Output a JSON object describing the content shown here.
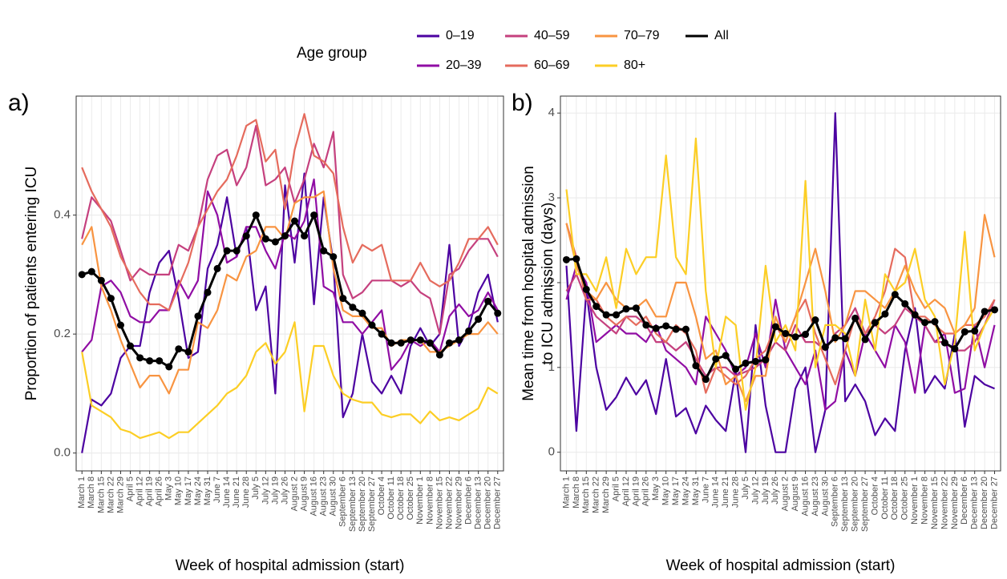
{
  "chart_data": [
    {
      "type": "line",
      "label": "a)",
      "legend_title": "Age group",
      "y_label": [
        "Proportion of patients entering ICU"
      ],
      "x_label": "Week of hospital admission (start)",
      "categories": [
        "March 1",
        "March 8",
        "March 15",
        "March 22",
        "March 29",
        "April 5",
        "April 12",
        "April 19",
        "April 26",
        "May 3",
        "May 10",
        "May 17",
        "May 24",
        "May 31",
        "June 7",
        "June 14",
        "June 21",
        "June 28",
        "July 5",
        "July 12",
        "July 19",
        "July 26",
        "August 2",
        "August 9",
        "August 16",
        "August 23",
        "August 30",
        "September 6",
        "September 13",
        "September 20",
        "September 27",
        "October 4",
        "October 11",
        "October 18",
        "October 25",
        "November 1",
        "November 8",
        "November 15",
        "November 22",
        "November 29",
        "December 6",
        "December 13",
        "December 20",
        "December 27"
      ],
      "ylim": [
        -0.03,
        0.6
      ],
      "yticks": [
        {
          "value": 0,
          "label": "0.0"
        },
        0.2,
        0.4
      ],
      "grid": true,
      "series": [
        {
          "name": "0–19",
          "color": "#4C02A1",
          "values": [
            0.0,
            0.09,
            0.08,
            0.1,
            0.16,
            0.18,
            0.18,
            0.27,
            0.32,
            0.34,
            0.26,
            0.16,
            0.17,
            0.31,
            0.35,
            0.43,
            0.33,
            0.38,
            0.24,
            0.28,
            0.1,
            0.45,
            0.32,
            0.47,
            0.25,
            0.43,
            0.32,
            0.06,
            0.1,
            0.2,
            0.12,
            0.1,
            0.13,
            0.1,
            0.18,
            0.21,
            0.18,
            0.2,
            0.35,
            0.18,
            0.21,
            0.27,
            0.3,
            0.22
          ]
        },
        {
          "name": "20–39",
          "color": "#900DA4",
          "values": [
            0.17,
            0.19,
            0.28,
            0.29,
            0.27,
            0.23,
            0.22,
            0.22,
            0.24,
            0.24,
            0.29,
            0.26,
            0.29,
            0.44,
            0.4,
            0.32,
            0.33,
            0.38,
            0.38,
            0.34,
            0.31,
            0.37,
            0.36,
            0.39,
            0.46,
            0.28,
            0.27,
            0.22,
            0.22,
            0.2,
            0.22,
            0.24,
            0.14,
            0.16,
            0.19,
            0.18,
            0.19,
            0.17,
            0.23,
            0.25,
            0.23,
            0.24,
            0.27,
            0.24
          ]
        },
        {
          "name": "40–59",
          "color": "#C5407E",
          "values": [
            0.36,
            0.43,
            0.41,
            0.39,
            0.34,
            0.29,
            0.31,
            0.3,
            0.3,
            0.3,
            0.35,
            0.34,
            0.38,
            0.46,
            0.5,
            0.51,
            0.45,
            0.48,
            0.55,
            0.45,
            0.46,
            0.48,
            0.42,
            0.46,
            0.52,
            0.48,
            0.54,
            0.3,
            0.26,
            0.27,
            0.29,
            0.29,
            0.29,
            0.28,
            0.29,
            0.27,
            0.26,
            0.2,
            0.3,
            0.31,
            0.34,
            0.36,
            0.36,
            0.33
          ]
        },
        {
          "name": "60–69",
          "color": "#E56B5D",
          "values": [
            0.48,
            0.44,
            0.41,
            0.38,
            0.33,
            0.3,
            0.27,
            0.25,
            0.25,
            0.24,
            0.28,
            0.32,
            0.38,
            0.41,
            0.44,
            0.46,
            0.5,
            0.55,
            0.56,
            0.49,
            0.51,
            0.41,
            0.51,
            0.57,
            0.5,
            0.49,
            0.47,
            0.38,
            0.32,
            0.35,
            0.34,
            0.35,
            0.29,
            0.29,
            0.29,
            0.32,
            0.29,
            0.28,
            0.29,
            0.32,
            0.36,
            0.36,
            0.38,
            0.35
          ]
        },
        {
          "name": "70–79",
          "color": "#F89441",
          "values": [
            0.35,
            0.38,
            0.28,
            0.24,
            0.19,
            0.15,
            0.11,
            0.13,
            0.13,
            0.1,
            0.14,
            0.14,
            0.22,
            0.21,
            0.24,
            0.3,
            0.29,
            0.33,
            0.34,
            0.38,
            0.38,
            0.36,
            0.42,
            0.43,
            0.43,
            0.44,
            0.31,
            0.24,
            0.23,
            0.23,
            0.21,
            0.21,
            0.18,
            0.19,
            0.19,
            0.19,
            0.17,
            0.17,
            0.18,
            0.19,
            0.2,
            0.2,
            0.22,
            0.2
          ]
        },
        {
          "name": "80+",
          "color": "#FCCE25",
          "values": [
            0.17,
            0.08,
            0.07,
            0.06,
            0.04,
            0.035,
            0.025,
            0.03,
            0.035,
            0.025,
            0.035,
            0.035,
            0.05,
            0.065,
            0.08,
            0.1,
            0.11,
            0.13,
            0.17,
            0.185,
            0.15,
            0.17,
            0.22,
            0.07,
            0.18,
            0.18,
            0.13,
            0.1,
            0.09,
            0.085,
            0.085,
            0.065,
            0.06,
            0.065,
            0.065,
            0.05,
            0.07,
            0.055,
            0.06,
            0.055,
            0.065,
            0.075,
            0.11,
            0.1
          ]
        },
        {
          "name": "All",
          "color": "#000000",
          "markers": true,
          "values": [
            0.3,
            0.305,
            0.29,
            0.26,
            0.215,
            0.18,
            0.16,
            0.155,
            0.155,
            0.145,
            0.175,
            0.17,
            0.23,
            0.27,
            0.31,
            0.34,
            0.34,
            0.365,
            0.4,
            0.36,
            0.355,
            0.365,
            0.39,
            0.365,
            0.4,
            0.34,
            0.33,
            0.26,
            0.245,
            0.235,
            0.215,
            0.2,
            0.185,
            0.185,
            0.19,
            0.19,
            0.185,
            0.165,
            0.185,
            0.19,
            0.205,
            0.225,
            0.255,
            0.235
          ]
        }
      ]
    },
    {
      "type": "line",
      "label": "b)",
      "y_label": [
        "Mean time from hospital admission",
        "to ICU admission (days)"
      ],
      "x_label": "Week of hospital admission (start)",
      "categories": [
        "March 1",
        "March 8",
        "March 15",
        "March 22",
        "March 29",
        "April 5",
        "April 12",
        "April 19",
        "April 26",
        "May 3",
        "May 10",
        "May 17",
        "May 24",
        "May 31",
        "June 7",
        "June 14",
        "June 21",
        "June 28",
        "July 5",
        "July 12",
        "July 19",
        "July 26",
        "August 2",
        "August 9",
        "August 16",
        "August 23",
        "August 30",
        "September 6",
        "September 13",
        "September 20",
        "September 27",
        "October 4",
        "October 11",
        "October 18",
        "October 25",
        "November 1",
        "November 8",
        "November 15",
        "November 22",
        "November 29",
        "December 6",
        "December 13",
        "December 20",
        "December 27"
      ],
      "ylim": [
        -0.22,
        4.2
      ],
      "yticks": [
        0,
        1,
        2,
        3,
        4
      ],
      "grid": true,
      "series": [
        {
          "name": "0–19",
          "color": "#4C02A1",
          "values": [
            2.2,
            0.25,
            1.9,
            1.0,
            0.5,
            0.65,
            0.88,
            0.68,
            0.85,
            0.45,
            1.1,
            0.42,
            0.52,
            0.22,
            0.55,
            0.38,
            0.25,
            0.95,
            0.0,
            1.5,
            0.55,
            0.0,
            0.0,
            0.75,
            1.0,
            0.0,
            0.5,
            4.0,
            0.6,
            0.8,
            0.6,
            0.2,
            0.4,
            0.25,
            1.2,
            1.7,
            0.7,
            0.9,
            0.75,
            1.4,
            0.3,
            0.9,
            0.8,
            0.75
          ]
        },
        {
          "name": "20–39",
          "color": "#900DA4",
          "values": [
            1.8,
            2.2,
            2.0,
            1.3,
            1.4,
            1.5,
            1.4,
            1.4,
            1.3,
            1.5,
            1.2,
            1.1,
            1.0,
            0.8,
            1.6,
            1.4,
            1.2,
            0.9,
            1.0,
            1.4,
            1.0,
            1.8,
            1.2,
            1.0,
            0.8,
            1.2,
            0.5,
            0.6,
            1.2,
            0.9,
            1.4,
            1.2,
            1.0,
            1.5,
            1.3,
            0.7,
            1.5,
            1.3,
            1.4,
            0.7,
            0.75,
            1.5,
            1.0,
            1.5
          ]
        },
        {
          "name": "40–59",
          "color": "#C5407E",
          "values": [
            1.9,
            2.1,
            1.8,
            1.6,
            1.5,
            1.4,
            1.6,
            1.6,
            1.5,
            1.3,
            1.3,
            1.2,
            1.3,
            1.1,
            0.9,
            1.0,
            1.0,
            0.9,
            0.95,
            1.0,
            1.1,
            1.3,
            1.2,
            1.5,
            1.3,
            1.3,
            1.2,
            1.4,
            1.5,
            1.7,
            1.4,
            1.5,
            1.4,
            1.5,
            1.7,
            1.6,
            1.5,
            1.3,
            1.3,
            1.2,
            1.2,
            1.3,
            1.5,
            1.8
          ]
        },
        {
          "name": "60–69",
          "color": "#E56B5D",
          "values": [
            2.7,
            2.3,
            1.8,
            1.8,
            1.6,
            1.5,
            1.6,
            1.5,
            1.6,
            1.4,
            1.3,
            1.5,
            1.4,
            1.2,
            0.7,
            1.0,
            0.9,
            0.8,
            0.9,
            1.1,
            1.2,
            1.5,
            1.3,
            1.6,
            1.8,
            1.4,
            1.1,
            0.8,
            1.2,
            1.6,
            1.4,
            1.6,
            1.9,
            2.4,
            2.3,
            1.6,
            1.6,
            1.5,
            1.4,
            1.4,
            1.5,
            1.5,
            1.6,
            1.8
          ]
        },
        {
          "name": "70–79",
          "color": "#F89441",
          "values": [
            2.7,
            2.2,
            1.9,
            1.8,
            2.0,
            1.8,
            1.7,
            1.7,
            1.8,
            1.6,
            1.6,
            2.0,
            2.0,
            1.6,
            1.1,
            1.2,
            0.8,
            0.9,
            0.6,
            0.9,
            0.9,
            1.6,
            1.3,
            1.6,
            2.0,
            2.4,
            1.9,
            1.3,
            1.5,
            1.9,
            1.9,
            1.8,
            1.7,
            1.9,
            2.2,
            1.9,
            1.7,
            1.8,
            1.7,
            1.4,
            1.5,
            1.7,
            2.8,
            2.3
          ]
        },
        {
          "name": "80+",
          "color": "#FCCE25",
          "values": [
            3.1,
            2.1,
            2.1,
            1.9,
            2.3,
            1.7,
            2.4,
            2.1,
            2.3,
            2.3,
            3.5,
            2.3,
            2.1,
            3.7,
            1.9,
            1.0,
            1.6,
            1.5,
            0.5,
            1.0,
            2.2,
            1.3,
            1.5,
            1.2,
            3.2,
            1.0,
            1.5,
            1.5,
            1.4,
            0.9,
            1.8,
            1.2,
            2.1,
            1.9,
            2.0,
            2.4,
            1.8,
            1.6,
            0.8,
            1.3,
            2.6,
            1.2,
            1.5,
            1.7
          ]
        },
        {
          "name": "All",
          "color": "#000000",
          "markers": true,
          "values": [
            2.27,
            2.28,
            1.92,
            1.72,
            1.62,
            1.62,
            1.69,
            1.7,
            1.5,
            1.46,
            1.49,
            1.45,
            1.45,
            1.02,
            0.86,
            1.1,
            1.14,
            0.98,
            1.05,
            1.07,
            1.09,
            1.48,
            1.4,
            1.36,
            1.39,
            1.56,
            1.24,
            1.35,
            1.34,
            1.58,
            1.33,
            1.53,
            1.63,
            1.86,
            1.75,
            1.62,
            1.53,
            1.54,
            1.29,
            1.22,
            1.42,
            1.43,
            1.66,
            1.68
          ]
        }
      ]
    }
  ]
}
